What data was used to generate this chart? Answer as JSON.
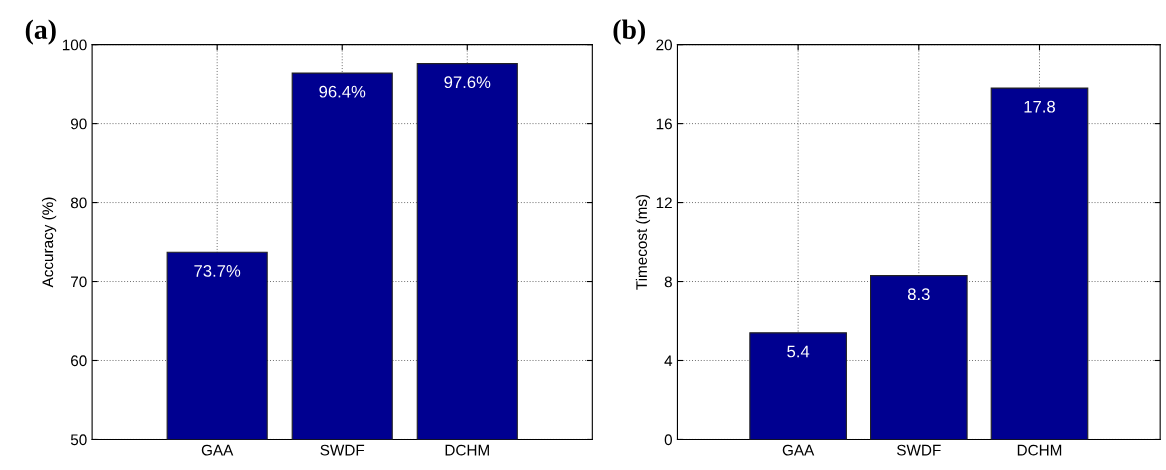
{
  "chart_data": [
    {
      "type": "bar",
      "title": "(a)",
      "ylabel": "Accuracy (%)",
      "categories": [
        "GAA",
        "SWDF",
        "DCHM"
      ],
      "values": [
        73.7,
        96.4,
        97.6
      ],
      "value_labels": [
        "73.7%",
        "96.4%",
        "97.6%"
      ],
      "color": "#000090",
      "ylim": [
        50,
        100
      ],
      "yticks": [
        50,
        60,
        70,
        80,
        90,
        100
      ],
      "grid": true
    },
    {
      "type": "bar",
      "title": "(b)",
      "ylabel": "Timecost (ms)",
      "categories": [
        "GAA",
        "SWDF",
        "DCHM"
      ],
      "values": [
        5.4,
        8.3,
        17.8
      ],
      "data_labels": true,
      "color": "#000090",
      "ylim": [
        0,
        20
      ],
      "yticks": [
        0,
        4,
        8,
        12,
        16,
        20
      ],
      "grid": true
    }
  ]
}
